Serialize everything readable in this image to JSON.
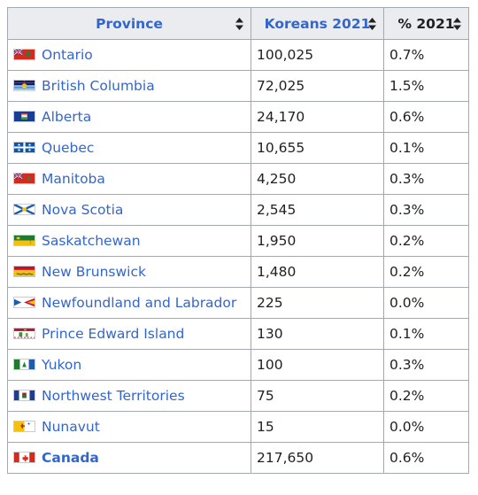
{
  "table": {
    "headers": {
      "province": "Province",
      "koreans": "Koreans 2021",
      "percent": "% 2021"
    },
    "rows": [
      {
        "flag": "ontario-flag-icon",
        "name": "Ontario",
        "koreans": "100,025",
        "percent": "0.7%"
      },
      {
        "flag": "british-columbia-flag-icon",
        "name": "British Columbia",
        "koreans": "72,025",
        "percent": "1.5%"
      },
      {
        "flag": "alberta-flag-icon",
        "name": "Alberta",
        "koreans": "24,170",
        "percent": "0.6%"
      },
      {
        "flag": "quebec-flag-icon",
        "name": "Quebec",
        "koreans": "10,655",
        "percent": "0.1%"
      },
      {
        "flag": "manitoba-flag-icon",
        "name": "Manitoba",
        "koreans": "4,250",
        "percent": "0.3%"
      },
      {
        "flag": "nova-scotia-flag-icon",
        "name": "Nova Scotia",
        "koreans": "2,545",
        "percent": "0.3%"
      },
      {
        "flag": "saskatchewan-flag-icon",
        "name": "Saskatchewan",
        "koreans": "1,950",
        "percent": "0.2%"
      },
      {
        "flag": "new-brunswick-flag-icon",
        "name": "New Brunswick",
        "koreans": "1,480",
        "percent": "0.2%"
      },
      {
        "flag": "newfoundland-flag-icon",
        "name": "Newfoundland and Labrador",
        "koreans": "225",
        "percent": "0.0%"
      },
      {
        "flag": "pei-flag-icon",
        "name": "Prince Edward Island",
        "koreans": "130",
        "percent": "0.1%"
      },
      {
        "flag": "yukon-flag-icon",
        "name": "Yukon",
        "koreans": "100",
        "percent": "0.3%"
      },
      {
        "flag": "nwt-flag-icon",
        "name": "Northwest Territories",
        "koreans": "75",
        "percent": "0.2%"
      },
      {
        "flag": "nunavut-flag-icon",
        "name": "Nunavut",
        "koreans": "15",
        "percent": "0.0%"
      }
    ],
    "total": {
      "flag": "canada-flag-icon",
      "name": "Canada",
      "koreans": "217,650",
      "percent": "0.6%"
    }
  },
  "colors": {
    "link": "#3366cc",
    "header_bg": "#eaecf0",
    "border": "#a2a9b1",
    "text": "#202122"
  }
}
